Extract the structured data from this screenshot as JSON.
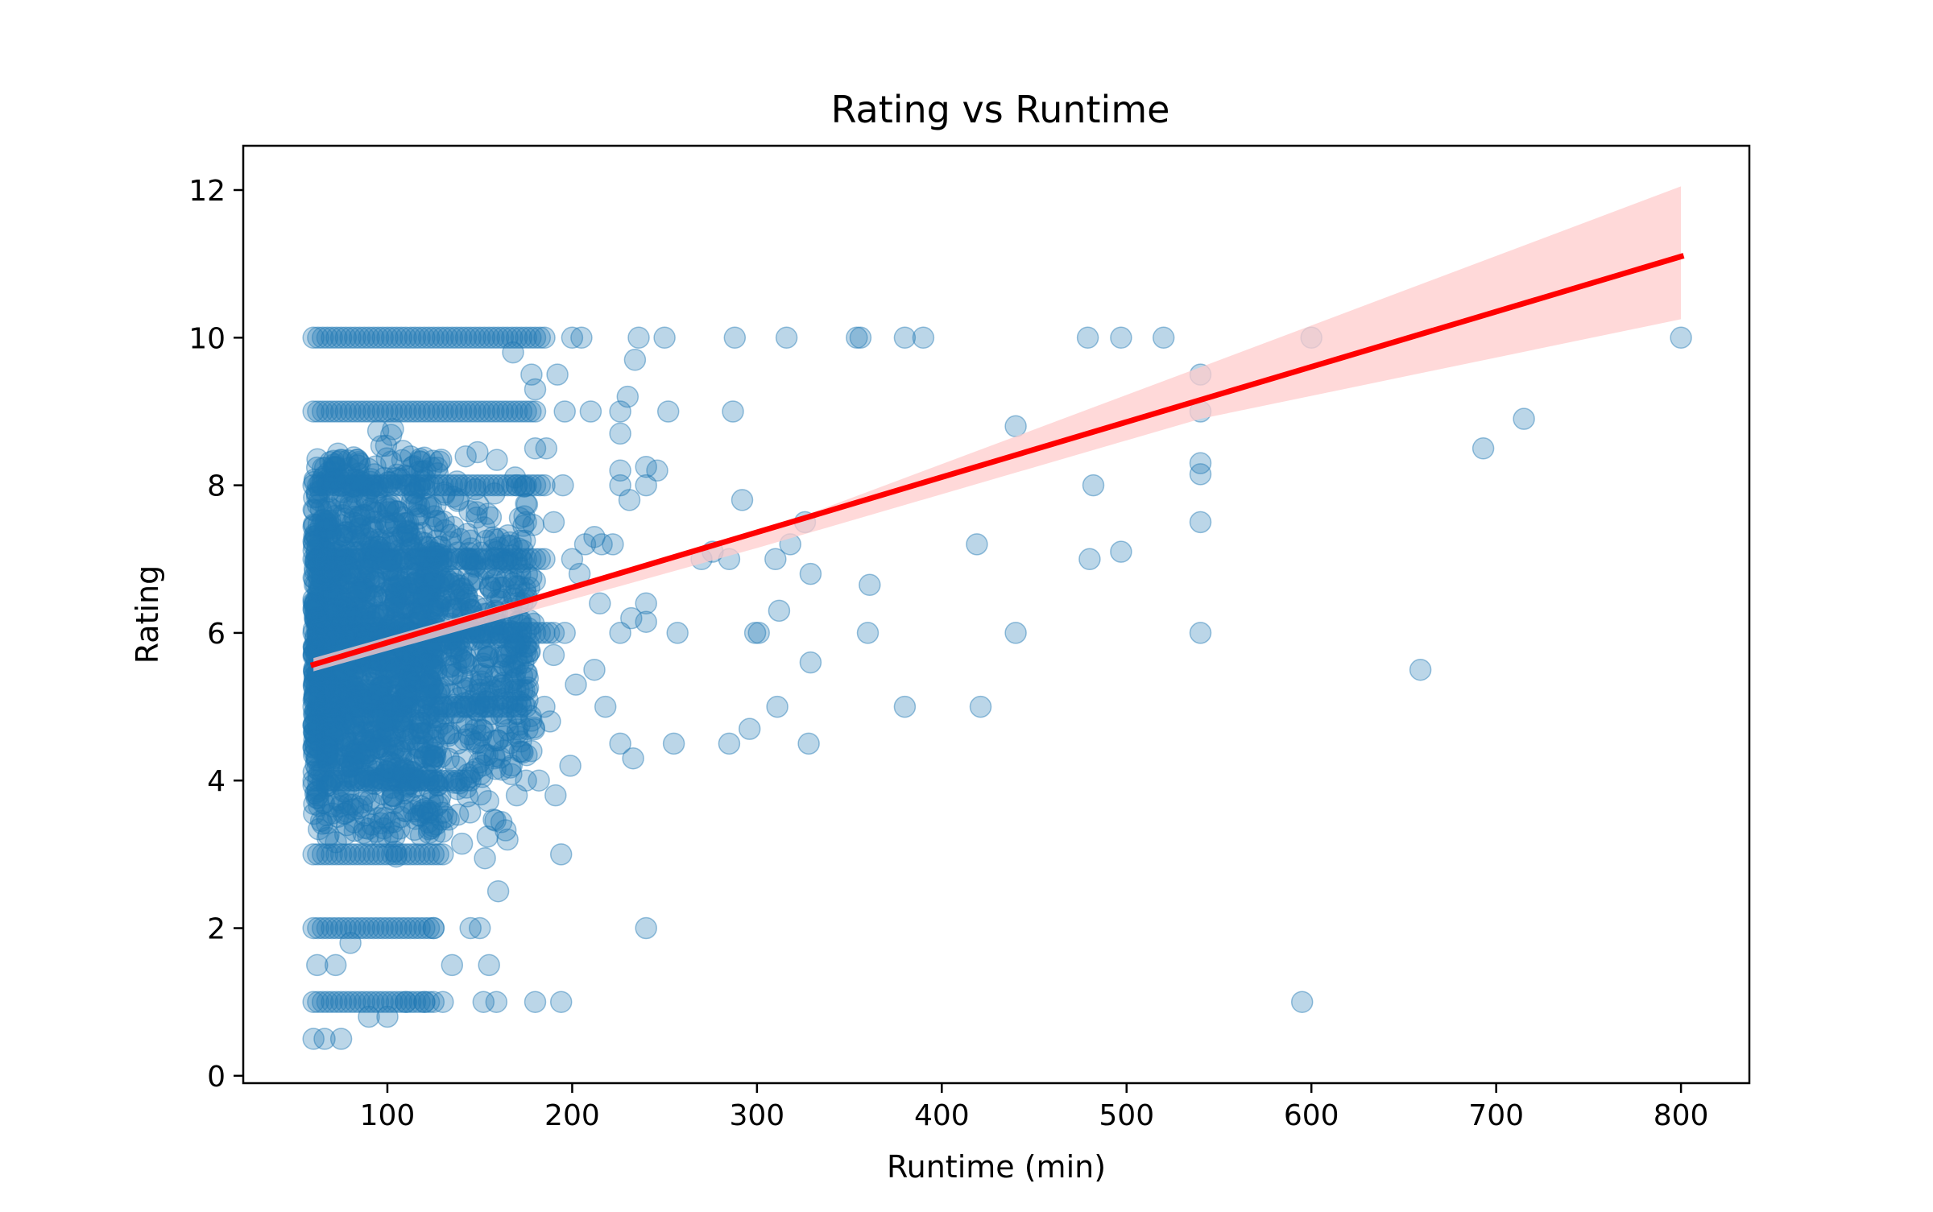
{
  "chart_data": {
    "type": "scatter",
    "title": "Rating vs Runtime",
    "xlabel": "Runtime (min)",
    "ylabel": "Rating",
    "xlim": [
      22,
      837
    ],
    "ylim": [
      -0.1,
      12.6
    ],
    "xticks": [
      100,
      200,
      300,
      400,
      500,
      600,
      700,
      800
    ],
    "yticks": [
      0,
      2,
      4,
      6,
      8,
      10,
      12
    ],
    "grid": false,
    "legend": "none",
    "colors": {
      "points": "#1f77b4",
      "regression": "#ff0000",
      "band": "#ffcccc"
    },
    "point_alpha": 0.3,
    "outlier_points": [
      [
        200,
        10
      ],
      [
        205,
        10
      ],
      [
        236,
        10
      ],
      [
        250,
        10
      ],
      [
        288,
        10
      ],
      [
        316,
        10
      ],
      [
        354,
        10
      ],
      [
        356,
        10
      ],
      [
        380,
        10
      ],
      [
        390,
        10
      ],
      [
        479,
        10
      ],
      [
        497,
        10
      ],
      [
        520,
        10
      ],
      [
        600,
        10
      ],
      [
        800,
        10
      ],
      [
        234,
        9.7
      ],
      [
        230,
        9.2
      ],
      [
        226,
        9.0
      ],
      [
        210,
        9.0
      ],
      [
        252,
        9.0
      ],
      [
        287,
        9.0
      ],
      [
        226,
        8.7
      ],
      [
        226,
        8.2
      ],
      [
        240,
        8.25
      ],
      [
        246,
        8.2
      ],
      [
        226,
        8.0
      ],
      [
        240,
        8.0
      ],
      [
        231,
        7.8
      ],
      [
        292,
        7.8
      ],
      [
        540,
        9.5
      ],
      [
        540,
        9.0
      ],
      [
        540,
        8.3
      ],
      [
        540,
        8.15
      ],
      [
        540,
        7.5
      ],
      [
        540,
        6.0
      ],
      [
        440,
        8.8
      ],
      [
        482,
        8.0
      ],
      [
        715,
        8.9
      ],
      [
        693,
        8.5
      ],
      [
        419,
        7.2
      ],
      [
        480,
        7.0
      ],
      [
        497,
        7.1
      ],
      [
        326,
        7.5
      ],
      [
        318,
        7.2
      ],
      [
        270,
        7.0
      ],
      [
        276,
        7.1
      ],
      [
        285,
        7.0
      ],
      [
        310,
        7.0
      ],
      [
        329,
        6.8
      ],
      [
        361,
        6.65
      ],
      [
        312,
        6.3
      ],
      [
        240,
        6.4
      ],
      [
        240,
        6.15
      ],
      [
        232,
        6.2
      ],
      [
        226,
        6.0
      ],
      [
        257,
        6.0
      ],
      [
        299,
        6.0
      ],
      [
        301,
        6.0
      ],
      [
        360,
        6.0
      ],
      [
        440,
        6.0
      ],
      [
        329,
        5.6
      ],
      [
        659,
        5.5
      ],
      [
        311,
        5.0
      ],
      [
        380,
        5.0
      ],
      [
        421,
        5.0
      ],
      [
        296,
        4.7
      ],
      [
        226,
        4.5
      ],
      [
        255,
        4.5
      ],
      [
        285,
        4.5
      ],
      [
        328,
        4.5
      ],
      [
        233,
        4.3
      ],
      [
        240,
        2.0
      ],
      [
        595,
        1.0
      ],
      [
        218,
        5.0
      ],
      [
        212,
        5.5
      ],
      [
        215,
        6.4
      ],
      [
        207,
        7.2
      ],
      [
        212,
        7.3
      ],
      [
        216,
        7.2
      ],
      [
        222,
        7.2
      ],
      [
        202,
        5.3
      ],
      [
        199,
        4.2
      ],
      [
        194,
        3.0
      ],
      [
        191,
        3.8
      ],
      [
        194,
        1.0
      ],
      [
        180,
        1.0
      ],
      [
        159,
        1.0
      ],
      [
        152,
        1.0
      ],
      [
        170,
        3.8
      ],
      [
        165,
        3.2
      ],
      [
        160,
        2.5
      ],
      [
        145,
        2.0
      ],
      [
        150,
        2.0
      ],
      [
        155,
        1.5
      ],
      [
        135,
        1.5
      ],
      [
        125,
        2.0
      ],
      [
        120,
        1.0
      ],
      [
        130,
        1.0
      ],
      [
        110,
        1.0
      ],
      [
        100,
        0.8
      ],
      [
        90,
        0.8
      ],
      [
        75,
        0.5
      ],
      [
        60,
        0.5
      ],
      [
        66,
        0.5
      ],
      [
        62,
        1.5
      ],
      [
        72,
        1.5
      ],
      [
        80,
        1.8
      ],
      [
        168,
        9.8
      ],
      [
        178,
        9.5
      ],
      [
        180,
        9.3
      ],
      [
        192,
        9.5
      ],
      [
        196,
        9.0
      ],
      [
        186,
        8.5
      ],
      [
        180,
        8.5
      ],
      [
        170,
        8.0
      ],
      [
        175,
        7.5
      ],
      [
        190,
        7.5
      ],
      [
        195,
        8.0
      ],
      [
        200,
        7.0
      ],
      [
        204,
        6.8
      ],
      [
        196,
        6.0
      ],
      [
        190,
        5.7
      ],
      [
        185,
        5.0
      ],
      [
        188,
        4.8
      ],
      [
        178,
        4.4
      ],
      [
        175,
        4.0
      ],
      [
        182,
        4.0
      ],
      [
        170,
        4.9
      ],
      [
        163,
        4.6
      ],
      [
        158,
        4.3
      ],
      [
        155,
        5.2
      ]
    ],
    "dense_band_rows": [
      {
        "y": 10,
        "x": [
          60,
          185
        ]
      },
      {
        "y": 9,
        "x": [
          60,
          180
        ]
      },
      {
        "y": 8,
        "x": [
          60,
          185
        ]
      },
      {
        "y": 7,
        "x": [
          60,
          185
        ]
      },
      {
        "y": 6,
        "x": [
          60,
          190
        ]
      },
      {
        "y": 5,
        "x": [
          60,
          175
        ]
      },
      {
        "y": 4,
        "x": [
          60,
          145
        ]
      },
      {
        "y": 3,
        "x": [
          60,
          130
        ]
      },
      {
        "y": 2,
        "x": [
          60,
          125
        ]
      },
      {
        "y": 1,
        "x": [
          60,
          125
        ]
      }
    ],
    "dense_cloud": {
      "x": [
        60,
        180
      ],
      "y": [
        2.5,
        9.2
      ]
    },
    "regression": {
      "x": [
        60,
        800
      ],
      "y": [
        5.57,
        11.1
      ]
    },
    "confidence_band": {
      "x": [
        60,
        300,
        540,
        800
      ],
      "lower": [
        5.48,
        7.15,
        8.9,
        10.25
      ],
      "upper": [
        5.66,
        7.35,
        9.6,
        12.05
      ]
    }
  }
}
